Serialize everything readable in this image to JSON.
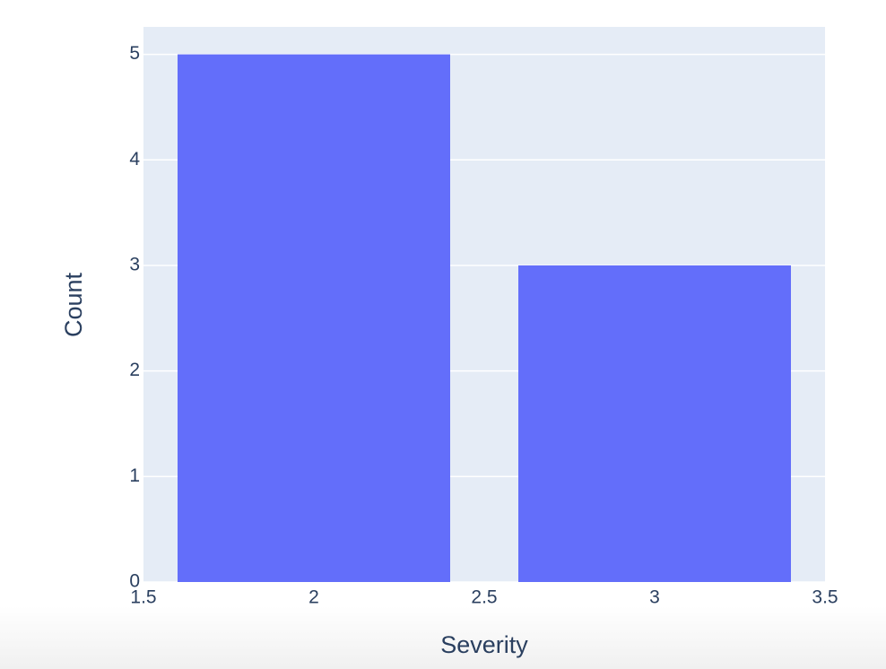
{
  "chart_data": {
    "type": "bar",
    "x": [
      2,
      3
    ],
    "values": [
      5,
      3
    ],
    "color": "#636efa",
    "xlabel": "Severity",
    "ylabel": "Count",
    "xlim": [
      1.5,
      3.5
    ],
    "xticks": [
      1.5,
      2,
      2.5,
      3,
      3.5
    ],
    "ylim": [
      0,
      5.26
    ],
    "yticks": [
      0,
      1,
      2,
      3,
      4,
      5
    ],
    "grid": true
  }
}
